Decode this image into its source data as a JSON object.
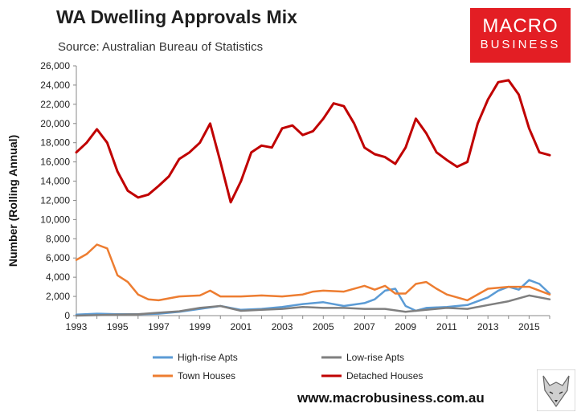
{
  "header": {
    "title": "WA Dwelling Approvals Mix",
    "source": "Source: Australian Bureau of Statistics"
  },
  "logo": {
    "line1": "MACRO",
    "line2": "BUSINESS"
  },
  "website": "www.macrobusiness.com.au",
  "chart_data": {
    "type": "line",
    "title": "WA Dwelling Approvals Mix",
    "xlabel": "",
    "ylabel": "Number (Rolling Annual)",
    "xlim": [
      1993,
      2016
    ],
    "ylim": [
      0,
      26000
    ],
    "x_ticks": [
      "1993",
      "1995",
      "1997",
      "1999",
      "2001",
      "2003",
      "2005",
      "2007",
      "2009",
      "2011",
      "2013",
      "2015"
    ],
    "y_ticks": [
      "0",
      "2,000",
      "4,000",
      "6,000",
      "8,000",
      "10,000",
      "12,000",
      "14,000",
      "16,000",
      "18,000",
      "20,000",
      "22,000",
      "24,000",
      "26,000"
    ],
    "grid": false,
    "legend_position": "bottom",
    "series": [
      {
        "name": "High-rise Apts",
        "color": "#5b9bd5",
        "x": [
          1993,
          1994,
          1995,
          1996,
          1997,
          1998,
          1999,
          2000,
          2001,
          2002,
          2003,
          2004,
          2005,
          2006,
          2007,
          2007.5,
          2008,
          2008.5,
          2009,
          2009.5,
          2010,
          2011,
          2012,
          2013,
          2013.5,
          2014,
          2014.5,
          2015,
          2015.5,
          2016
        ],
        "values": [
          100,
          200,
          150,
          150,
          200,
          400,
          700,
          1000,
          600,
          700,
          900,
          1200,
          1400,
          1000,
          1300,
          1700,
          2600,
          2800,
          1000,
          500,
          800,
          900,
          1100,
          1900,
          2600,
          3000,
          2700,
          3700,
          3300,
          2300
        ]
      },
      {
        "name": "Low-rise Apts",
        "color": "#7f7f7f",
        "x": [
          1993,
          1994,
          1995,
          1996,
          1997,
          1998,
          1999,
          2000,
          2001,
          2002,
          2003,
          2004,
          2005,
          2006,
          2007,
          2008,
          2009,
          2010,
          2011,
          2012,
          2013,
          2014,
          2015,
          2016
        ],
        "values": [
          0,
          50,
          100,
          150,
          300,
          450,
          800,
          1000,
          500,
          600,
          700,
          900,
          800,
          800,
          700,
          700,
          400,
          600,
          800,
          700,
          1100,
          1500,
          2100,
          1700
        ]
      },
      {
        "name": "Town Houses",
        "color": "#ed7d31",
        "x": [
          1993,
          1993.5,
          1994,
          1994.5,
          1995,
          1995.5,
          1996,
          1996.5,
          1997,
          1998,
          1999,
          1999.5,
          2000,
          2001,
          2002,
          2003,
          2004,
          2004.5,
          2005,
          2006,
          2007,
          2007.5,
          2008,
          2008.5,
          2009,
          2009.5,
          2010,
          2010.5,
          2011,
          2012,
          2013,
          2014,
          2015,
          2016
        ],
        "values": [
          5800,
          6400,
          7400,
          7000,
          4200,
          3500,
          2200,
          1700,
          1600,
          2000,
          2100,
          2600,
          2000,
          2000,
          2100,
          2000,
          2200,
          2500,
          2600,
          2500,
          3100,
          2700,
          3100,
          2300,
          2300,
          3300,
          3500,
          2800,
          2200,
          1600,
          2800,
          3000,
          3000,
          2200
        ]
      },
      {
        "name": "Detached Houses",
        "color": "#c00000",
        "x": [
          1993,
          1993.5,
          1994,
          1994.5,
          1995,
          1995.5,
          1996,
          1996.5,
          1997,
          1997.5,
          1998,
          1998.5,
          1999,
          1999.5,
          2000,
          2000.5,
          2001,
          2001.5,
          2002,
          2002.5,
          2003,
          2003.5,
          2004,
          2004.5,
          2005,
          2005.5,
          2006,
          2006.5,
          2007,
          2007.5,
          2008,
          2008.5,
          2009,
          2009.5,
          2010,
          2010.5,
          2011,
          2011.5,
          2012,
          2012.5,
          2013,
          2013.5,
          2014,
          2014.5,
          2015,
          2015.5,
          2016
        ],
        "values": [
          17000,
          18000,
          19400,
          18000,
          15000,
          13000,
          12300,
          12600,
          13500,
          14500,
          16300,
          17000,
          18000,
          20000,
          16000,
          11800,
          14000,
          17000,
          17700,
          17500,
          19500,
          19800,
          18800,
          19200,
          20500,
          22100,
          21800,
          20000,
          17500,
          16800,
          16500,
          15800,
          17500,
          20500,
          19000,
          17000,
          16200,
          15500,
          16000,
          20000,
          22500,
          24300,
          24500,
          23000,
          19500,
          17000,
          16700
        ]
      }
    ]
  }
}
